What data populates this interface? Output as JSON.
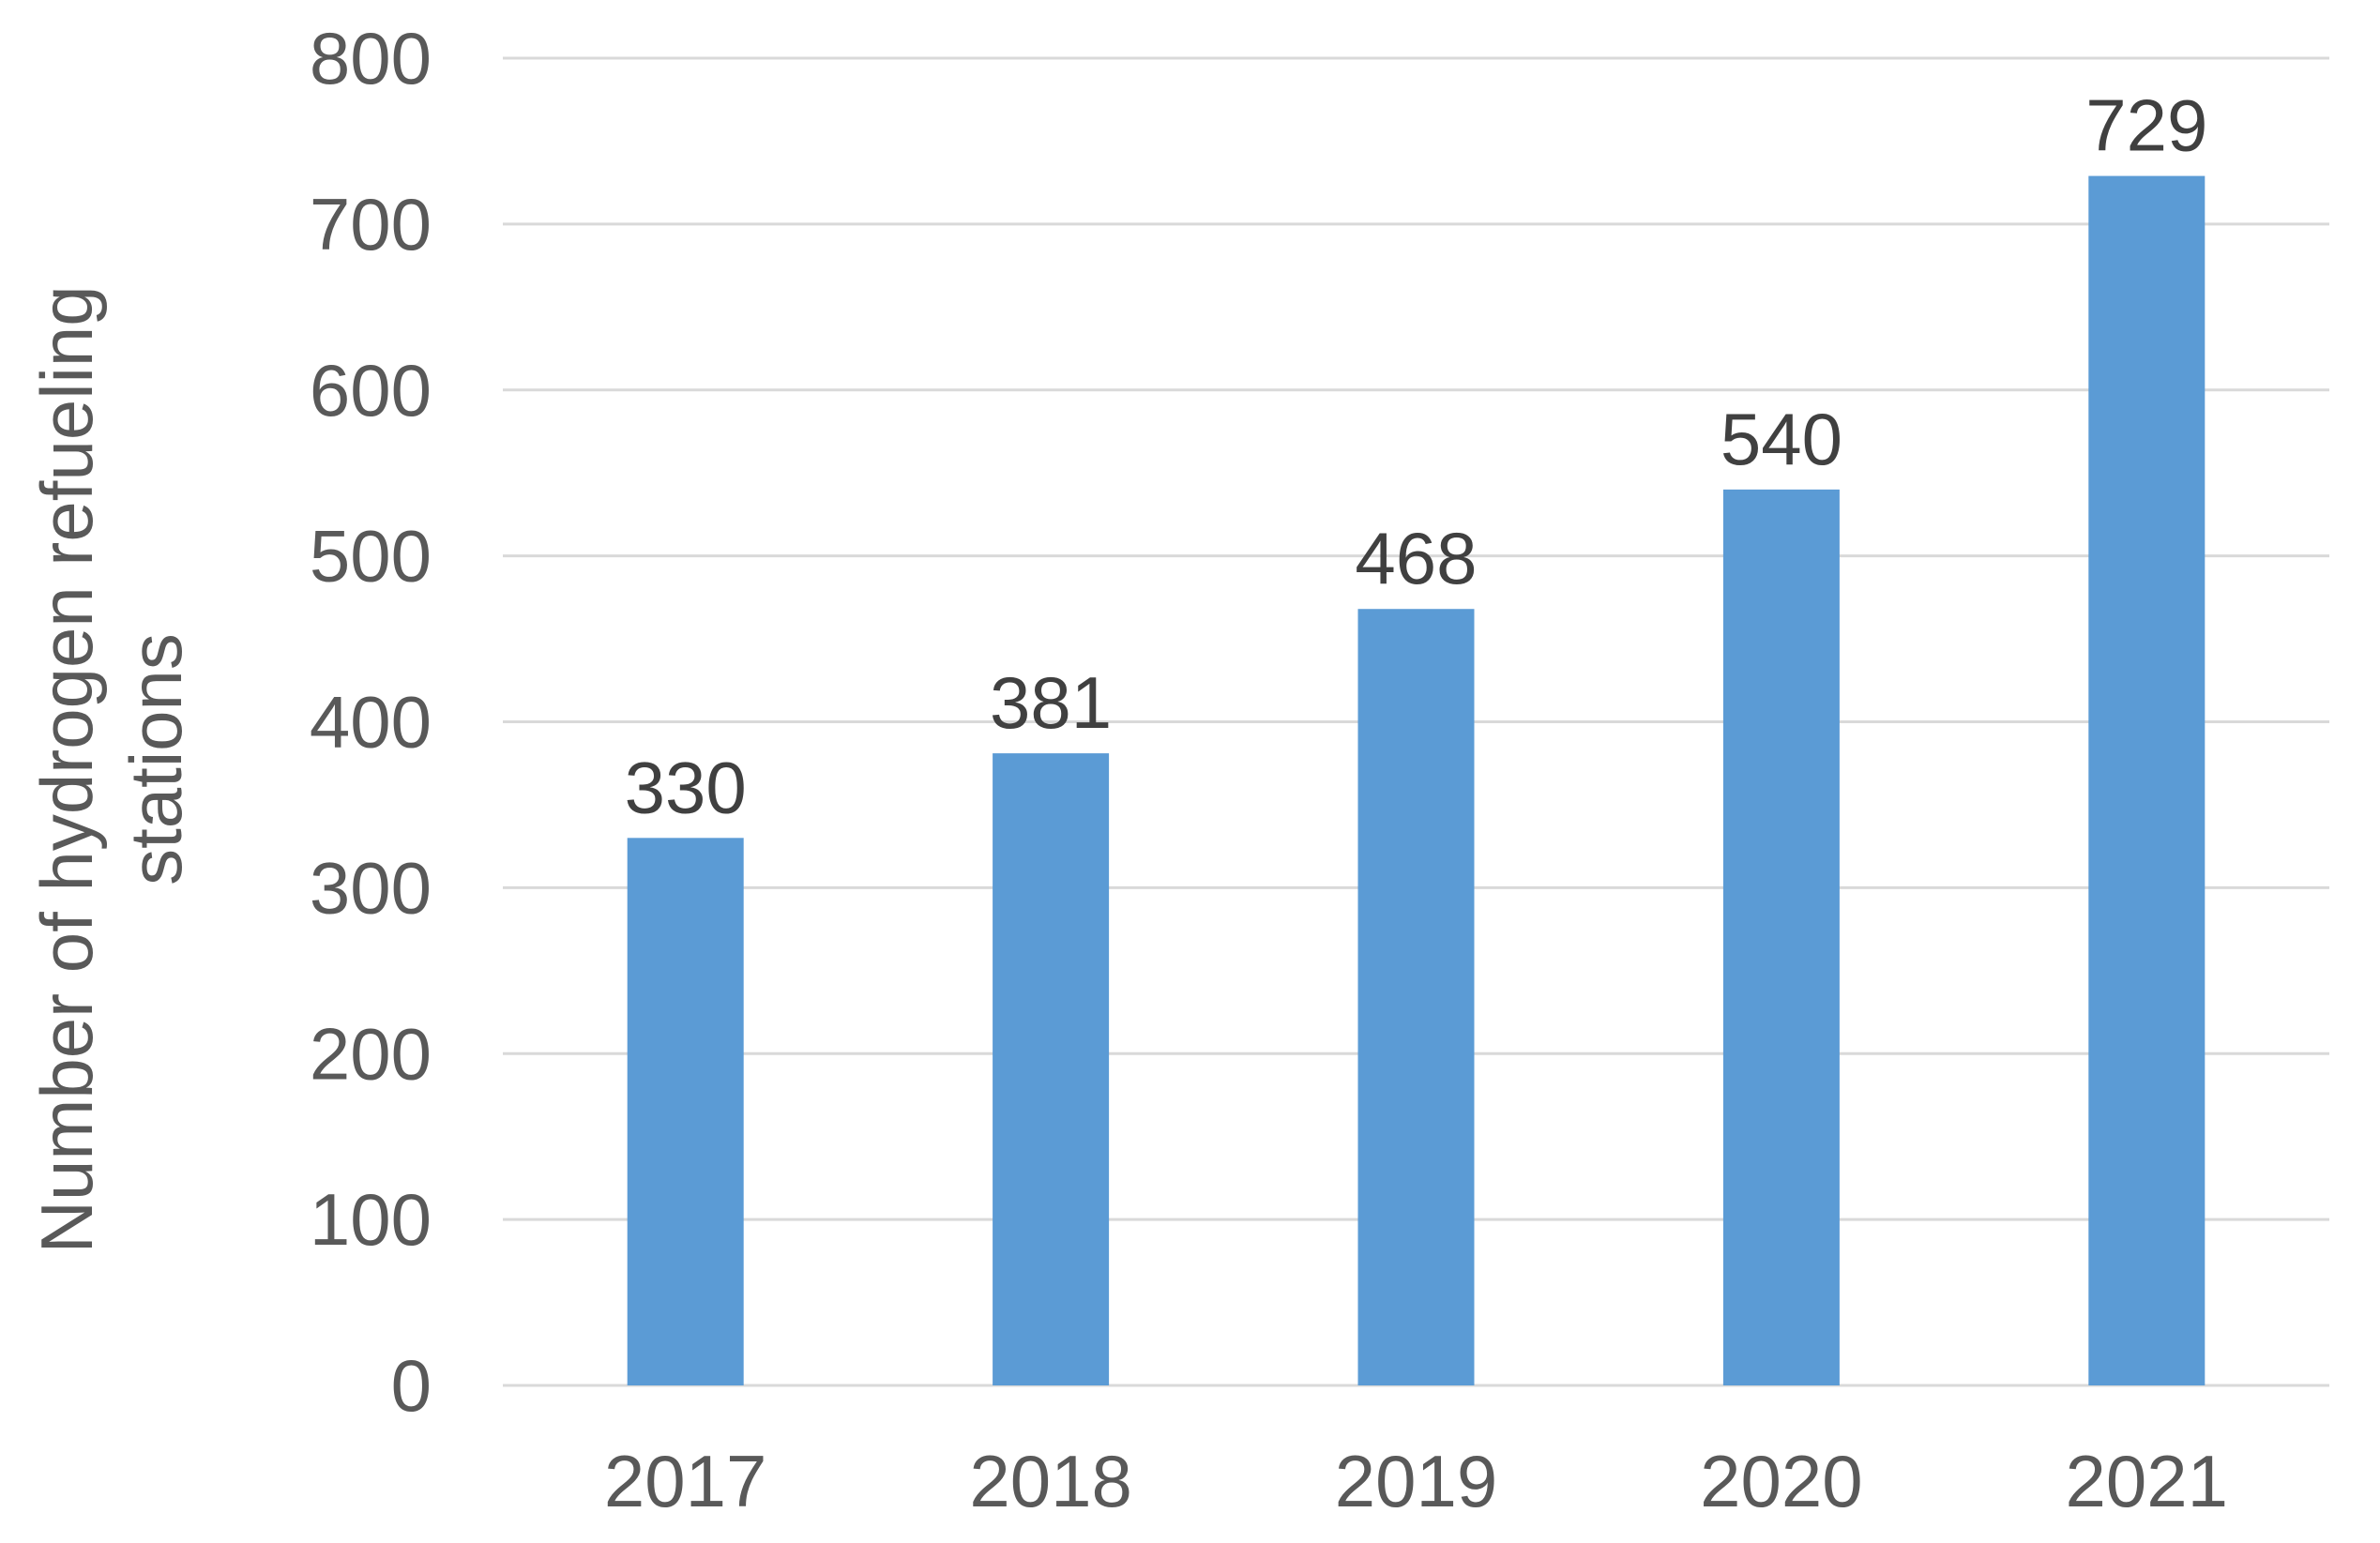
{
  "chart_data": {
    "type": "bar",
    "title": "",
    "xlabel": "",
    "ylabel_lines": [
      "Number of hydrogen refueling",
      "stations"
    ],
    "categories": [
      "2017",
      "2018",
      "2019",
      "2020",
      "2021"
    ],
    "values": [
      330,
      381,
      468,
      540,
      729
    ],
    "data_labels": [
      "330",
      "381",
      "468",
      "540",
      "729"
    ],
    "ylim": [
      0,
      800
    ],
    "yticks": [
      0,
      100,
      200,
      300,
      400,
      500,
      600,
      700,
      800
    ],
    "ytick_labels": [
      "0",
      "100",
      "200",
      "300",
      "400",
      "500",
      "600",
      "700",
      "800"
    ],
    "grid": true,
    "legend": "none",
    "colors": {
      "bar": "#5b9bd5",
      "grid": "#d9d9d9",
      "tick_text": "#595959",
      "label_text": "#404040"
    }
  }
}
